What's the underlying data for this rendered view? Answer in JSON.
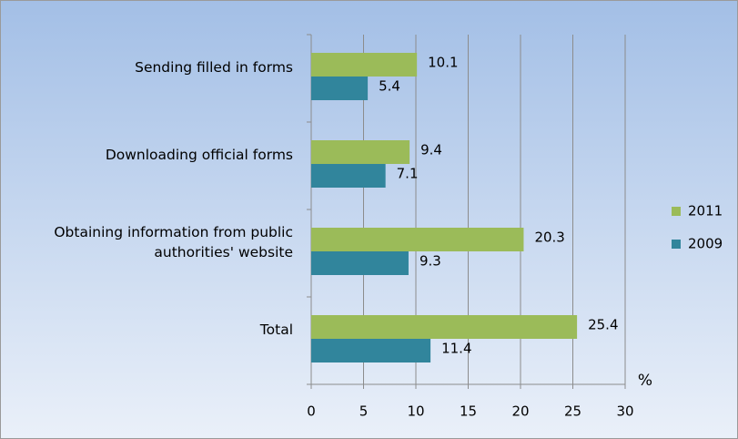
{
  "chart_data": {
    "type": "bar",
    "orientation": "horizontal",
    "categories": [
      "Sending filled in forms",
      "Downloading official forms",
      "Obtaining information from public authorities' website",
      "Total"
    ],
    "series": [
      {
        "name": "2011",
        "color": "#9bbb59",
        "values": [
          10.1,
          9.4,
          20.3,
          25.4
        ]
      },
      {
        "name": "2009",
        "color": "#31859c",
        "values": [
          5.4,
          7.1,
          9.3,
          11.4
        ]
      }
    ],
    "xlim": [
      0,
      30
    ],
    "xticks": [
      0,
      5,
      10,
      15,
      20,
      25,
      30
    ],
    "x_label": "%",
    "grid": true,
    "legend": "right"
  }
}
